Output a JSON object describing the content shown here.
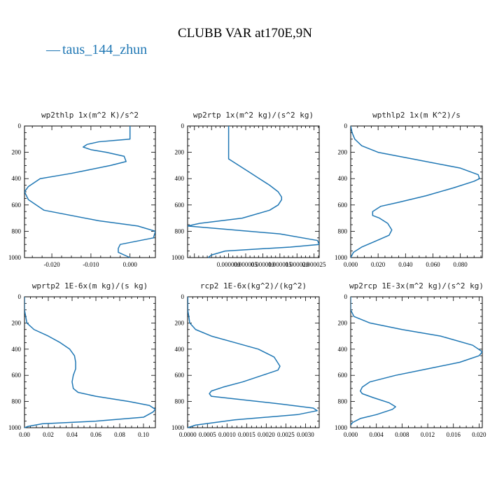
{
  "figure": {
    "title": "CLUBB VAR at170E,9N",
    "legend": [
      {
        "label": "taus_144_zhun",
        "color": "#1f77b4",
        "marker": "—"
      }
    ]
  },
  "chart_data": [
    {
      "type": "line",
      "title": "wp2thlp  1x(m^2 K)/s^2",
      "xlim": [
        -0.027,
        0.0065
      ],
      "ylim": [
        1000,
        0
      ],
      "xticks": [
        -0.02,
        -0.01,
        0.0
      ],
      "xticklabels": [
        "-0.020",
        "-0.010",
        "0.000"
      ],
      "yticks": [
        0,
        200,
        400,
        600,
        800,
        1000
      ],
      "grid": false,
      "series": [
        {
          "color": "#1f77b4",
          "x": [
            0.0,
            -0.003,
            -0.003,
            -0.0025,
            0.006,
            0.0065,
            0.002,
            -0.008,
            -0.022,
            -0.026,
            -0.027,
            -0.026,
            -0.023,
            -0.015,
            -0.005,
            -0.001,
            -0.0015,
            -0.006,
            -0.01,
            -0.012,
            -0.011,
            -0.008,
            -0.004,
            0.0,
            0.0
          ],
          "y": [
            1000,
            960,
            930,
            900,
            850,
            800,
            760,
            720,
            640,
            560,
            500,
            460,
            400,
            360,
            300,
            270,
            230,
            200,
            180,
            160,
            140,
            120,
            110,
            100,
            0
          ]
        }
      ]
    },
    {
      "type": "line",
      "title": "wp2rtp  1x(m^2 kg)/(s^2 kg)",
      "xlim": [
        -1.2e-05,
        2.65e-05
      ],
      "ylim": [
        1000,
        0
      ],
      "xticks": [
        0.0,
        5e-06,
        1e-05,
        1.5e-05,
        2e-05,
        2.5e-05
      ],
      "xticklabels": [
        "0.000000",
        "0.000005",
        "0.000010",
        "0.000015",
        "0.000020",
        "0.000025"
      ],
      "yticks": [
        0,
        200,
        400,
        600,
        800,
        1000
      ],
      "grid": false,
      "series": [
        {
          "color": "#1f77b4",
          "x": [
            0.0,
            0.0,
            0.0,
            0.0,
            3e-06,
            6e-06,
            9e-06,
            1.2e-05,
            1.45e-05,
            1.55e-05,
            1.55e-05,
            1.45e-05,
            1.2e-05,
            4e-06,
            -8.5e-06,
            -1.2e-05,
            -3e-06,
            1.5e-05,
            2.6e-05,
            2.65e-05,
            1.8e-05,
            -1e-06,
            -5e-06,
            -6e-06
          ],
          "y": [
            0,
            100,
            200,
            250,
            300,
            350,
            400,
            450,
            500,
            540,
            560,
            600,
            640,
            700,
            740,
            760,
            780,
            820,
            870,
            900,
            920,
            950,
            980,
            1000
          ]
        }
      ]
    },
    {
      "type": "line",
      "title": "wpthlp2  1x(m K^2)/s",
      "xlim": [
        0.0,
        0.096
      ],
      "ylim": [
        1000,
        0
      ],
      "xticks": [
        0.0,
        0.02,
        0.04,
        0.06,
        0.08
      ],
      "xticklabels": [
        "0.000",
        "0.020",
        "0.040",
        "0.060",
        "0.080"
      ],
      "yticks": [
        0,
        200,
        400,
        600,
        800,
        1000
      ],
      "grid": false,
      "series": [
        {
          "color": "#1f77b4",
          "x": [
            0.0,
            0.001,
            0.003,
            0.008,
            0.02,
            0.05,
            0.08,
            0.093,
            0.094,
            0.09,
            0.075,
            0.055,
            0.035,
            0.022,
            0.016,
            0.016,
            0.021,
            0.027,
            0.03,
            0.028,
            0.017,
            0.008,
            0.002,
            0.0
          ],
          "y": [
            0,
            50,
            100,
            150,
            200,
            260,
            320,
            370,
            400,
            420,
            470,
            530,
            580,
            610,
            650,
            680,
            700,
            740,
            790,
            830,
            880,
            920,
            960,
            1000
          ]
        }
      ]
    },
    {
      "type": "line",
      "title": "wprtp2  1E-6x(m kg)/(s kg)",
      "xlim": [
        0.0,
        0.11
      ],
      "ylim": [
        1000,
        0
      ],
      "xticks": [
        0.0,
        0.02,
        0.04,
        0.06,
        0.08,
        0.1
      ],
      "xticklabels": [
        "0.00",
        "0.02",
        "0.04",
        "0.06",
        "0.08",
        "0.10"
      ],
      "yticks": [
        0,
        200,
        400,
        600,
        800,
        1000
      ],
      "grid": false,
      "series": [
        {
          "color": "#1f77b4",
          "x": [
            0.0,
            0.0,
            0.002,
            0.008,
            0.02,
            0.03,
            0.038,
            0.042,
            0.043,
            0.043,
            0.041,
            0.04,
            0.041,
            0.045,
            0.06,
            0.088,
            0.105,
            0.11,
            0.108,
            0.1,
            0.06,
            0.015,
            0.003,
            0.0
          ],
          "y": [
            0,
            100,
            200,
            250,
            300,
            350,
            400,
            450,
            500,
            550,
            600,
            650,
            700,
            730,
            760,
            800,
            830,
            860,
            880,
            920,
            950,
            970,
            990,
            1000
          ]
        }
      ]
    },
    {
      "type": "line",
      "title": "rcp2  1E-6x(kg^2)/(kg^2)",
      "xlim": [
        -5e-06,
        0.00335
      ],
      "ylim": [
        1000,
        0
      ],
      "xticks": [
        0.0,
        0.0005,
        0.001,
        0.0015,
        0.002,
        0.0025,
        0.003
      ],
      "xticklabels": [
        "0.0000",
        "0.0005",
        "0.0010",
        "0.0015",
        "0.0020",
        "0.0025",
        "0.0030"
      ],
      "yticks": [
        0,
        200,
        400,
        600,
        800,
        1000
      ],
      "grid": false,
      "series": [
        {
          "color": "#1f77b4",
          "x": [
            0.0,
            0.0,
            5e-05,
            0.0002,
            0.0006,
            0.0012,
            0.0018,
            0.0022,
            0.00235,
            0.0023,
            0.0019,
            0.0014,
            0.0009,
            0.0006,
            0.00055,
            0.0006,
            0.0012,
            0.0024,
            0.0032,
            0.0033,
            0.0028,
            0.0012,
            0.0002,
            0.0
          ],
          "y": [
            0,
            100,
            200,
            250,
            300,
            350,
            400,
            460,
            530,
            560,
            600,
            650,
            690,
            720,
            740,
            760,
            780,
            820,
            850,
            870,
            900,
            940,
            980,
            1000
          ]
        }
      ]
    },
    {
      "type": "line",
      "title": "wp2rcp  1E-3x(m^2 kg)/(s^2 kg)",
      "xlim": [
        0.0,
        0.0205
      ],
      "ylim": [
        1000,
        0
      ],
      "xticks": [
        0.0,
        0.004,
        0.008,
        0.012,
        0.016,
        0.02
      ],
      "xticklabels": [
        "0.000",
        "0.004",
        "0.008",
        "0.012",
        "0.016",
        "0.020"
      ],
      "yticks": [
        0,
        200,
        400,
        600,
        800,
        1000
      ],
      "grid": false,
      "series": [
        {
          "color": "#1f77b4",
          "x": [
            0.0,
            0.0,
            0.0005,
            0.003,
            0.008,
            0.014,
            0.019,
            0.0205,
            0.02,
            0.017,
            0.012,
            0.007,
            0.003,
            0.0018,
            0.0015,
            0.0018,
            0.0035,
            0.006,
            0.007,
            0.0065,
            0.004,
            0.0015,
            0.0003,
            0.0
          ],
          "y": [
            0,
            100,
            150,
            200,
            250,
            300,
            370,
            420,
            450,
            500,
            550,
            600,
            650,
            690,
            720,
            740,
            770,
            810,
            840,
            860,
            900,
            930,
            960,
            980
          ]
        }
      ]
    }
  ]
}
